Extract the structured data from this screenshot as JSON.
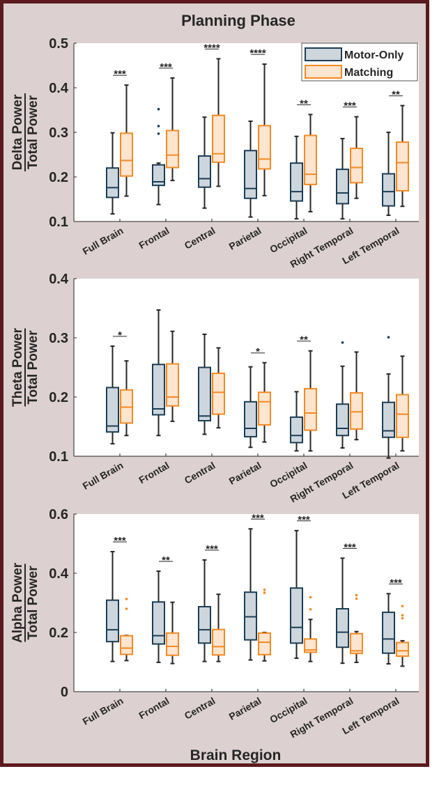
{
  "title": "Planning Phase",
  "xlabel": "Brain Region",
  "legend": {
    "placement": "top-right of first panel",
    "entries": [
      {
        "name": "Motor-Only",
        "stroke": "#1b3d56",
        "fill": "#cdd6dc"
      },
      {
        "name": "Matching",
        "stroke": "#f7891f",
        "fill": "#fde5d0"
      }
    ]
  },
  "colors": {
    "frame_border": "#5c1a1e",
    "frame_background": "#dcd0d0",
    "plot_background": "#ffffff"
  },
  "chart_data": [
    {
      "type": "box",
      "ylabel": {
        "numerator": "Delta Power",
        "denominator": "Total Power"
      },
      "ylim": [
        0.1,
        0.5
      ],
      "yticks": [
        "0.1",
        "0.2",
        "0.3",
        "0.4",
        "0.5"
      ],
      "categories": [
        "Full Brain",
        "Frontal",
        "Central",
        "Parietal",
        "Occipital",
        "Right Temporal",
        "Left Temporal"
      ],
      "significance": [
        "***",
        "***",
        "****",
        "****",
        "**",
        "***",
        "**"
      ],
      "series": [
        {
          "name": "Motor-Only",
          "boxes": [
            {
              "min": 0.117,
              "q1": 0.154,
              "median": 0.176,
              "q3": 0.22,
              "max": 0.299,
              "outliers": []
            },
            {
              "min": 0.138,
              "q1": 0.181,
              "median": 0.189,
              "q3": 0.227,
              "max": 0.231,
              "outliers": [
                0.352,
                0.314,
                0.297
              ]
            },
            {
              "min": 0.13,
              "q1": 0.177,
              "median": 0.196,
              "q3": 0.247,
              "max": 0.334,
              "outliers": []
            },
            {
              "min": 0.11,
              "q1": 0.152,
              "median": 0.174,
              "q3": 0.259,
              "max": 0.325,
              "outliers": []
            },
            {
              "min": 0.106,
              "q1": 0.146,
              "median": 0.167,
              "q3": 0.231,
              "max": 0.291,
              "outliers": []
            },
            {
              "min": 0.106,
              "q1": 0.14,
              "median": 0.164,
              "q3": 0.217,
              "max": 0.286,
              "outliers": []
            },
            {
              "min": 0.114,
              "q1": 0.135,
              "median": 0.167,
              "q3": 0.207,
              "max": 0.3,
              "outliers": []
            }
          ]
        },
        {
          "name": "Matching",
          "boxes": [
            {
              "min": 0.157,
              "q1": 0.202,
              "median": 0.237,
              "q3": 0.298,
              "max": 0.406,
              "outliers": []
            },
            {
              "min": 0.192,
              "q1": 0.221,
              "median": 0.249,
              "q3": 0.304,
              "max": 0.422,
              "outliers": []
            },
            {
              "min": 0.179,
              "q1": 0.233,
              "median": 0.252,
              "q3": 0.338,
              "max": 0.465,
              "outliers": []
            },
            {
              "min": 0.158,
              "q1": 0.218,
              "median": 0.24,
              "q3": 0.315,
              "max": 0.453,
              "outliers": []
            },
            {
              "min": 0.122,
              "q1": 0.183,
              "median": 0.206,
              "q3": 0.293,
              "max": 0.34,
              "outliers": []
            },
            {
              "min": 0.152,
              "q1": 0.187,
              "median": 0.221,
              "q3": 0.264,
              "max": 0.335,
              "outliers": []
            },
            {
              "min": 0.134,
              "q1": 0.169,
              "median": 0.232,
              "q3": 0.278,
              "max": 0.36,
              "outliers": []
            }
          ]
        }
      ]
    },
    {
      "type": "box",
      "ylabel": {
        "numerator": "Theta Power",
        "denominator": "Total Power"
      },
      "ylim": [
        0.1,
        0.4
      ],
      "yticks": [
        "0.1",
        "0.2",
        "0.3",
        "0.4"
      ],
      "categories": [
        "Full Brain",
        "Frontal",
        "Central",
        "Parietal",
        "Occipital",
        "Right Temporal",
        "Left Temporal"
      ],
      "significance": [
        "*",
        "",
        "",
        "*",
        "**",
        "",
        ""
      ],
      "series": [
        {
          "name": "Motor-Only",
          "boxes": [
            {
              "min": 0.121,
              "q1": 0.141,
              "median": 0.151,
              "q3": 0.216,
              "max": 0.286,
              "outliers": []
            },
            {
              "min": 0.135,
              "q1": 0.17,
              "median": 0.18,
              "q3": 0.255,
              "max": 0.347,
              "outliers": []
            },
            {
              "min": 0.137,
              "q1": 0.16,
              "median": 0.168,
              "q3": 0.25,
              "max": 0.306,
              "outliers": []
            },
            {
              "min": 0.115,
              "q1": 0.133,
              "median": 0.147,
              "q3": 0.192,
              "max": 0.251,
              "outliers": []
            },
            {
              "min": 0.109,
              "q1": 0.123,
              "median": 0.135,
              "q3": 0.166,
              "max": 0.209,
              "outliers": []
            },
            {
              "min": 0.114,
              "q1": 0.135,
              "median": 0.147,
              "q3": 0.188,
              "max": 0.252,
              "outliers": [
                0.292
              ]
            },
            {
              "min": 0.097,
              "q1": 0.132,
              "median": 0.143,
              "q3": 0.191,
              "max": 0.239,
              "outliers": [
                0.301
              ]
            }
          ]
        },
        {
          "name": "Matching",
          "boxes": [
            {
              "min": 0.135,
              "q1": 0.156,
              "median": 0.183,
              "q3": 0.212,
              "max": 0.261,
              "outliers": []
            },
            {
              "min": 0.159,
              "q1": 0.185,
              "median": 0.2,
              "q3": 0.256,
              "max": 0.311,
              "outliers": []
            },
            {
              "min": 0.148,
              "q1": 0.171,
              "median": 0.208,
              "q3": 0.24,
              "max": 0.283,
              "outliers": []
            },
            {
              "min": 0.124,
              "q1": 0.153,
              "median": 0.192,
              "q3": 0.208,
              "max": 0.258,
              "outliers": []
            },
            {
              "min": 0.109,
              "q1": 0.144,
              "median": 0.173,
              "q3": 0.214,
              "max": 0.278,
              "outliers": []
            },
            {
              "min": 0.128,
              "q1": 0.146,
              "median": 0.175,
              "q3": 0.207,
              "max": 0.276,
              "outliers": []
            },
            {
              "min": 0.109,
              "q1": 0.132,
              "median": 0.171,
              "q3": 0.204,
              "max": 0.269,
              "outliers": []
            }
          ]
        }
      ]
    },
    {
      "type": "box",
      "ylabel": {
        "numerator": "Alpha Power",
        "denominator": "Total Power"
      },
      "ylim": [
        0,
        0.6
      ],
      "yticks": [
        "0",
        "0.2",
        "0.4",
        "0.6"
      ],
      "categories": [
        "Full Brain",
        "Frontal",
        "Central",
        "Parietal",
        "Occipital",
        "Right Temporal",
        "Left Temporal"
      ],
      "significance": [
        "***",
        "**",
        "***",
        "***",
        "***",
        "***",
        "***"
      ],
      "series": [
        {
          "name": "Motor-Only",
          "boxes": [
            {
              "min": 0.102,
              "q1": 0.169,
              "median": 0.209,
              "q3": 0.309,
              "max": 0.473,
              "outliers": []
            },
            {
              "min": 0.099,
              "q1": 0.161,
              "median": 0.189,
              "q3": 0.303,
              "max": 0.407,
              "outliers": []
            },
            {
              "min": 0.102,
              "q1": 0.164,
              "median": 0.209,
              "q3": 0.287,
              "max": 0.445,
              "outliers": []
            },
            {
              "min": 0.107,
              "q1": 0.175,
              "median": 0.253,
              "q3": 0.336,
              "max": 0.55,
              "outliers": []
            },
            {
              "min": 0.113,
              "q1": 0.164,
              "median": 0.217,
              "q3": 0.35,
              "max": 0.544,
              "outliers": []
            },
            {
              "min": 0.096,
              "q1": 0.15,
              "median": 0.201,
              "q3": 0.28,
              "max": 0.451,
              "outliers": []
            },
            {
              "min": 0.094,
              "q1": 0.13,
              "median": 0.178,
              "q3": 0.268,
              "max": 0.331,
              "outliers": []
            }
          ]
        },
        {
          "name": "Matching",
          "boxes": [
            {
              "min": 0.105,
              "q1": 0.126,
              "median": 0.147,
              "q3": 0.189,
              "max": 0.19,
              "outliers": [
                0.313,
                0.28
              ]
            },
            {
              "min": 0.095,
              "q1": 0.123,
              "median": 0.153,
              "q3": 0.198,
              "max": 0.302,
              "outliers": []
            },
            {
              "min": 0.102,
              "q1": 0.124,
              "median": 0.152,
              "q3": 0.21,
              "max": 0.329,
              "outliers": []
            },
            {
              "min": 0.104,
              "q1": 0.125,
              "median": 0.167,
              "q3": 0.198,
              "max": 0.2,
              "outliers": [
                0.344,
                0.334
              ]
            },
            {
              "min": 0.102,
              "q1": 0.133,
              "median": 0.141,
              "q3": 0.178,
              "max": 0.244,
              "outliers": [
                0.319,
                0.278
              ]
            },
            {
              "min": 0.099,
              "q1": 0.129,
              "median": 0.138,
              "q3": 0.196,
              "max": 0.203,
              "outliers": [
                0.326,
                0.314
              ]
            },
            {
              "min": 0.086,
              "q1": 0.12,
              "median": 0.138,
              "q3": 0.166,
              "max": 0.172,
              "outliers": [
                0.289,
                0.258,
                0.248
              ]
            }
          ]
        }
      ]
    }
  ]
}
